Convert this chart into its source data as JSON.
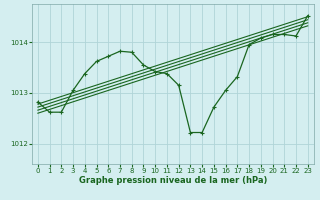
{
  "xlabel": "Graphe pression niveau de la mer (hPa)",
  "bg_color": "#d4eef0",
  "grid_color": "#b0d4d8",
  "line_color": "#1a6620",
  "ylim": [
    1011.6,
    1014.75
  ],
  "xlim": [
    -0.5,
    23.5
  ],
  "yticks": [
    1012,
    1013,
    1014
  ],
  "xticks": [
    0,
    1,
    2,
    3,
    4,
    5,
    6,
    7,
    8,
    9,
    10,
    11,
    12,
    13,
    14,
    15,
    16,
    17,
    18,
    19,
    20,
    21,
    22,
    23
  ],
  "main_x": [
    0,
    1,
    2,
    3,
    4,
    5,
    6,
    7,
    8,
    9,
    10,
    11,
    12,
    13,
    14,
    15,
    16,
    17,
    18,
    19,
    20,
    21,
    22,
    23
  ],
  "main_y": [
    1012.82,
    1012.62,
    1012.62,
    1013.05,
    1013.38,
    1013.62,
    1013.72,
    1013.82,
    1013.8,
    1013.55,
    1013.42,
    1013.38,
    1013.15,
    1012.22,
    1012.22,
    1012.72,
    1013.05,
    1013.32,
    1013.95,
    1014.08,
    1014.15,
    1014.15,
    1014.12,
    1014.52
  ],
  "trend1_x": [
    0,
    23
  ],
  "trend1_y": [
    1012.78,
    1014.5
  ],
  "trend2_x": [
    0,
    23
  ],
  "trend2_y": [
    1012.72,
    1014.44
  ],
  "trend3_x": [
    0,
    23
  ],
  "trend3_y": [
    1012.66,
    1014.38
  ],
  "trend4_x": [
    0,
    23
  ],
  "trend4_y": [
    1012.6,
    1014.32
  ]
}
